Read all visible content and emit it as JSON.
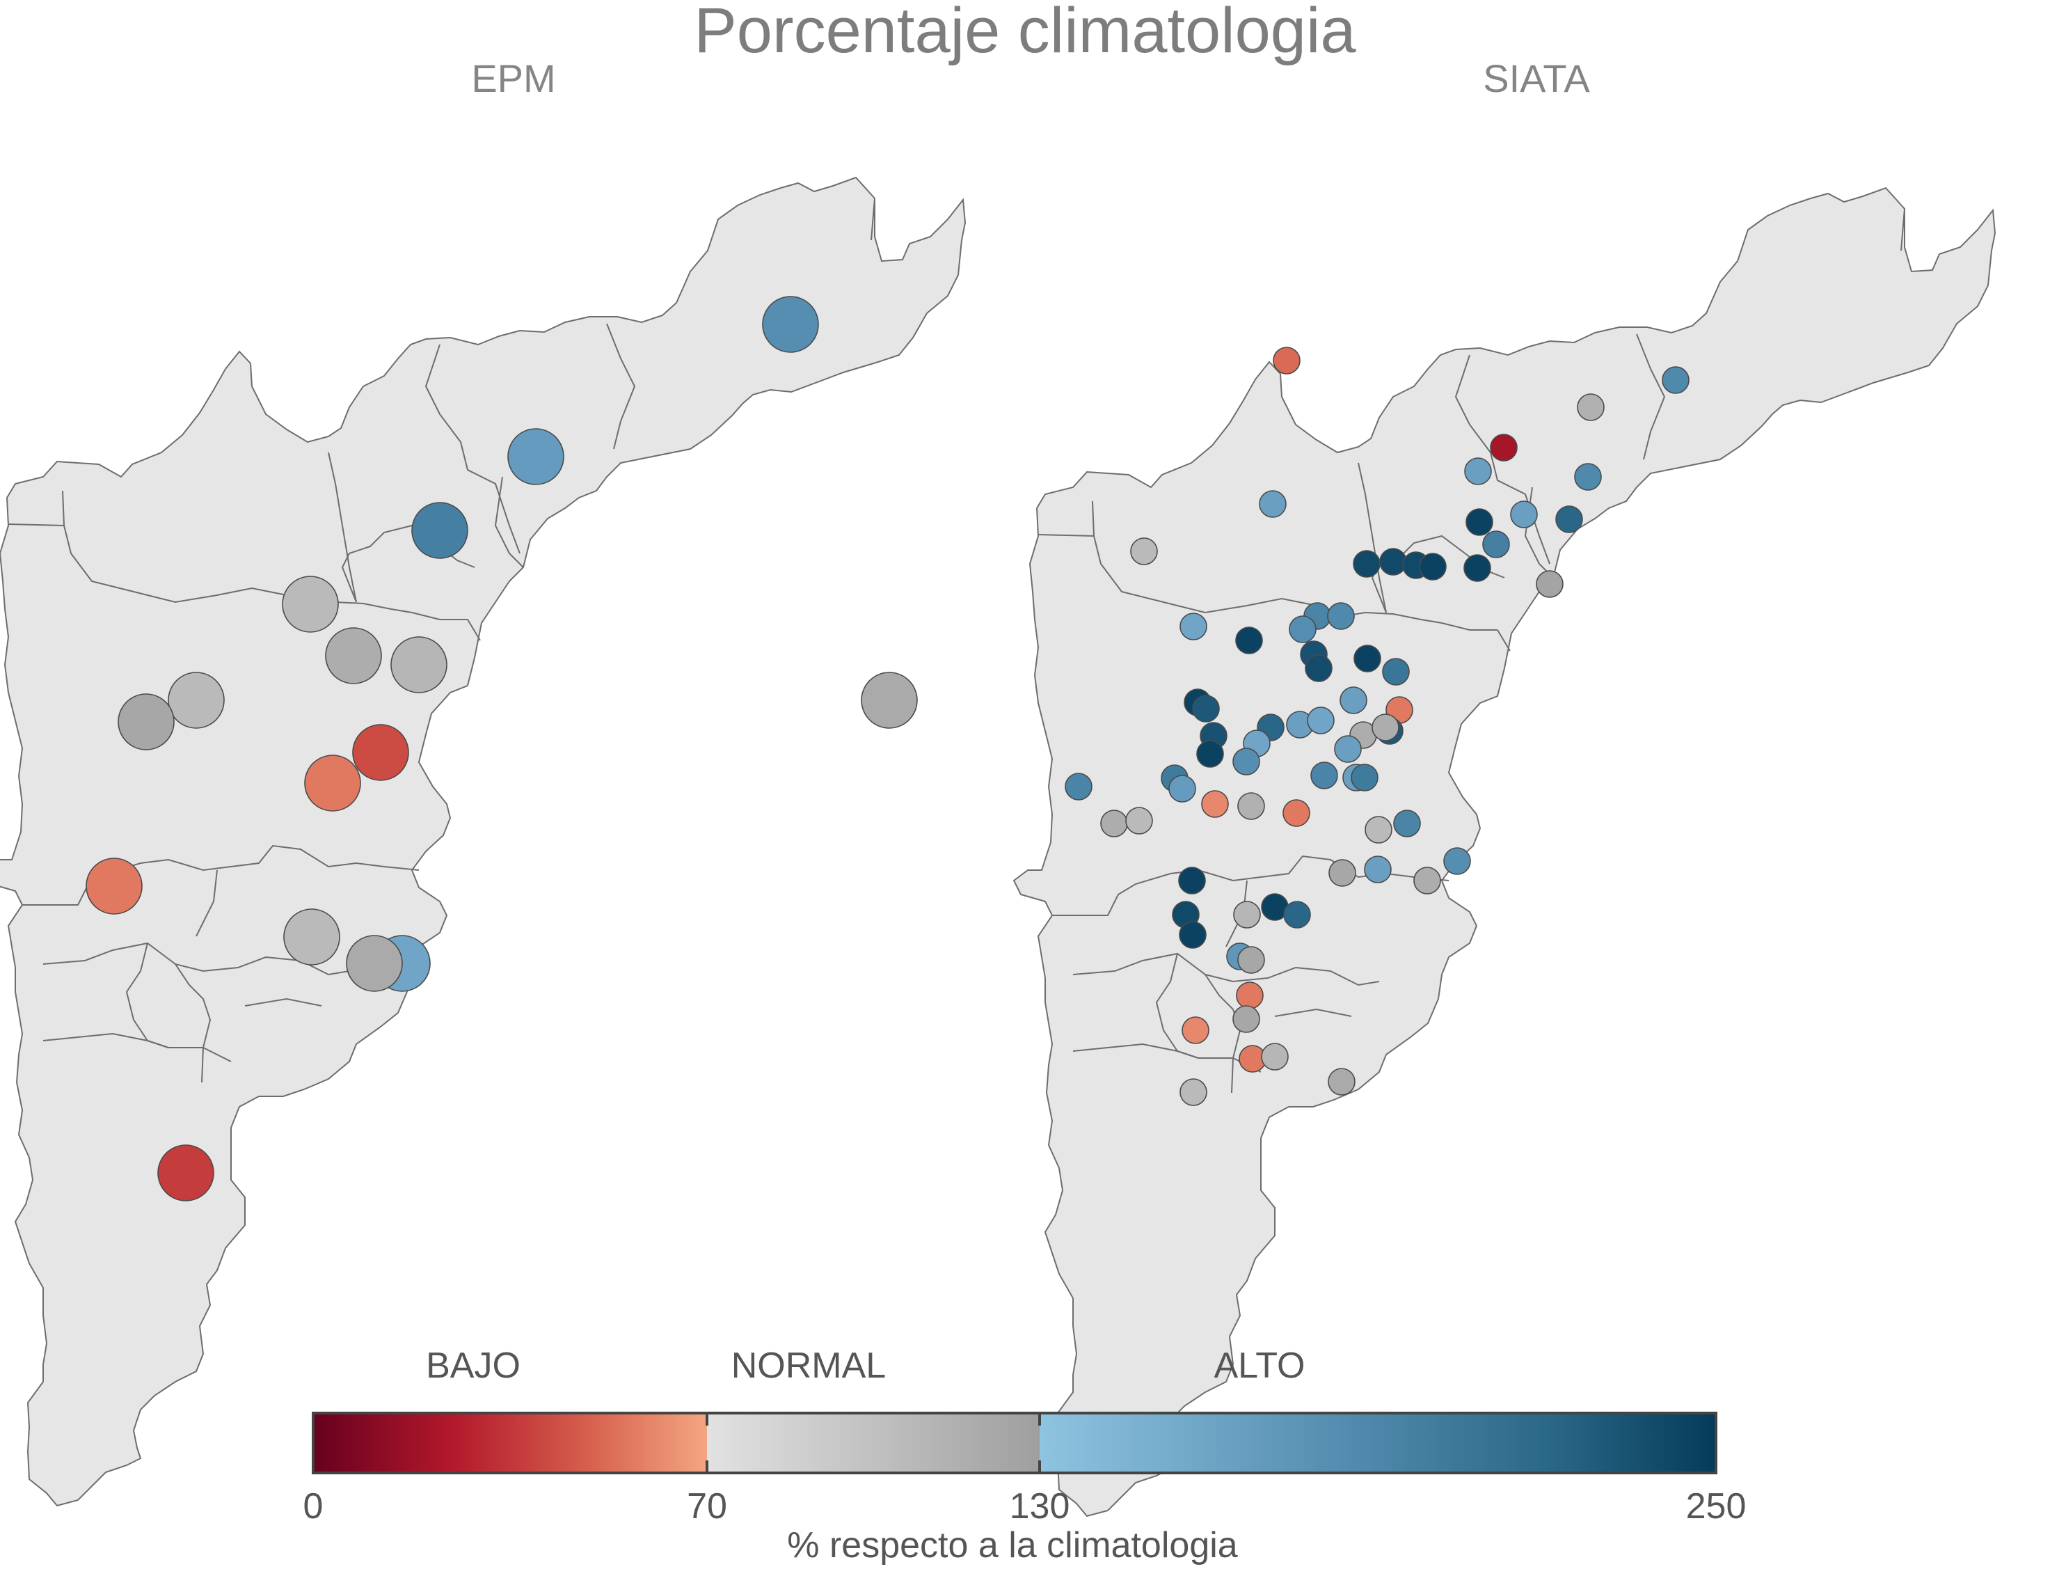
{
  "title": "Porcentaje climatologia",
  "panels": [
    {
      "name": "EPM",
      "stations": [
        {
          "v": 180
        },
        {
          "v": 155
        },
        {
          "v": 165
        },
        {
          "v": 195
        },
        {
          "v": 100
        },
        {
          "v": 100
        },
        {
          "v": 105
        },
        {
          "v": 115
        },
        {
          "v": 118
        },
        {
          "v": 122
        },
        {
          "v": 40
        },
        {
          "v": 55
        },
        {
          "v": 55
        },
        {
          "v": 100
        },
        {
          "v": 118
        },
        {
          "v": 35
        }
      ]
    },
    {
      "name": "SIATA",
      "stations": [
        {
          "v": 50
        },
        {
          "v": 185
        },
        {
          "v": 110
        },
        {
          "v": 20
        },
        {
          "v": 185
        },
        {
          "v": 160
        },
        {
          "v": 220
        },
        {
          "v": 160
        },
        {
          "v": 195
        },
        {
          "v": 245
        },
        {
          "v": 240
        },
        {
          "v": 240
        },
        {
          "v": 245
        },
        {
          "v": 245
        },
        {
          "v": 240
        },
        {
          "v": 125
        },
        {
          "v": 100
        },
        {
          "v": 160
        },
        {
          "v": 190
        },
        {
          "v": 180
        },
        {
          "v": 185
        },
        {
          "v": 155
        },
        {
          "v": 245
        },
        {
          "v": 235
        },
        {
          "v": 245
        },
        {
          "v": 238
        },
        {
          "v": 205
        },
        {
          "v": 245
        },
        {
          "v": 230
        },
        {
          "v": 160
        },
        {
          "v": 55
        },
        {
          "v": 235
        },
        {
          "v": 220
        },
        {
          "v": 160
        },
        {
          "v": 155
        },
        {
          "v": 230
        },
        {
          "v": 155
        },
        {
          "v": 115
        },
        {
          "v": 115
        },
        {
          "v": 160
        },
        {
          "v": 180
        },
        {
          "v": 245
        },
        {
          "v": 200
        },
        {
          "v": 190
        },
        {
          "v": 160
        },
        {
          "v": 200
        },
        {
          "v": 165
        },
        {
          "v": 60
        },
        {
          "v": 110
        },
        {
          "v": 55
        },
        {
          "v": 100
        },
        {
          "v": 115
        },
        {
          "v": 190
        },
        {
          "v": 100
        },
        {
          "v": 190
        },
        {
          "v": 180
        },
        {
          "v": 160
        },
        {
          "v": 122
        },
        {
          "v": 245
        },
        {
          "v": 115
        },
        {
          "v": 245
        },
        {
          "v": 105
        },
        {
          "v": 220
        },
        {
          "v": 240
        },
        {
          "v": 245
        },
        {
          "v": 170
        },
        {
          "v": 122
        },
        {
          "v": 55
        },
        {
          "v": 122
        },
        {
          "v": 60
        },
        {
          "v": 55
        },
        {
          "v": 105
        },
        {
          "v": 118
        },
        {
          "v": 100
        }
      ]
    }
  ],
  "legend": {
    "categories": [
      "BAJO",
      "NORMAL",
      "ALTO"
    ],
    "ticks": [
      0,
      70,
      130,
      250
    ],
    "range": [
      0,
      250
    ],
    "axis_label": "% respecto a la climatologia",
    "colors": {
      "bajo": [
        "#67001f",
        "#b2182b",
        "#d6604d",
        "#f4a582"
      ],
      "normal": [
        "#e0e0e0",
        "#bababa",
        "#a0a0a0"
      ],
      "alto": [
        "#92c5de",
        "#6a9fc2",
        "#4a85a8",
        "#2a6687",
        "#053b5a"
      ]
    },
    "region_fill": "#e6e6e6",
    "region_border": "#6d6d6d"
  }
}
